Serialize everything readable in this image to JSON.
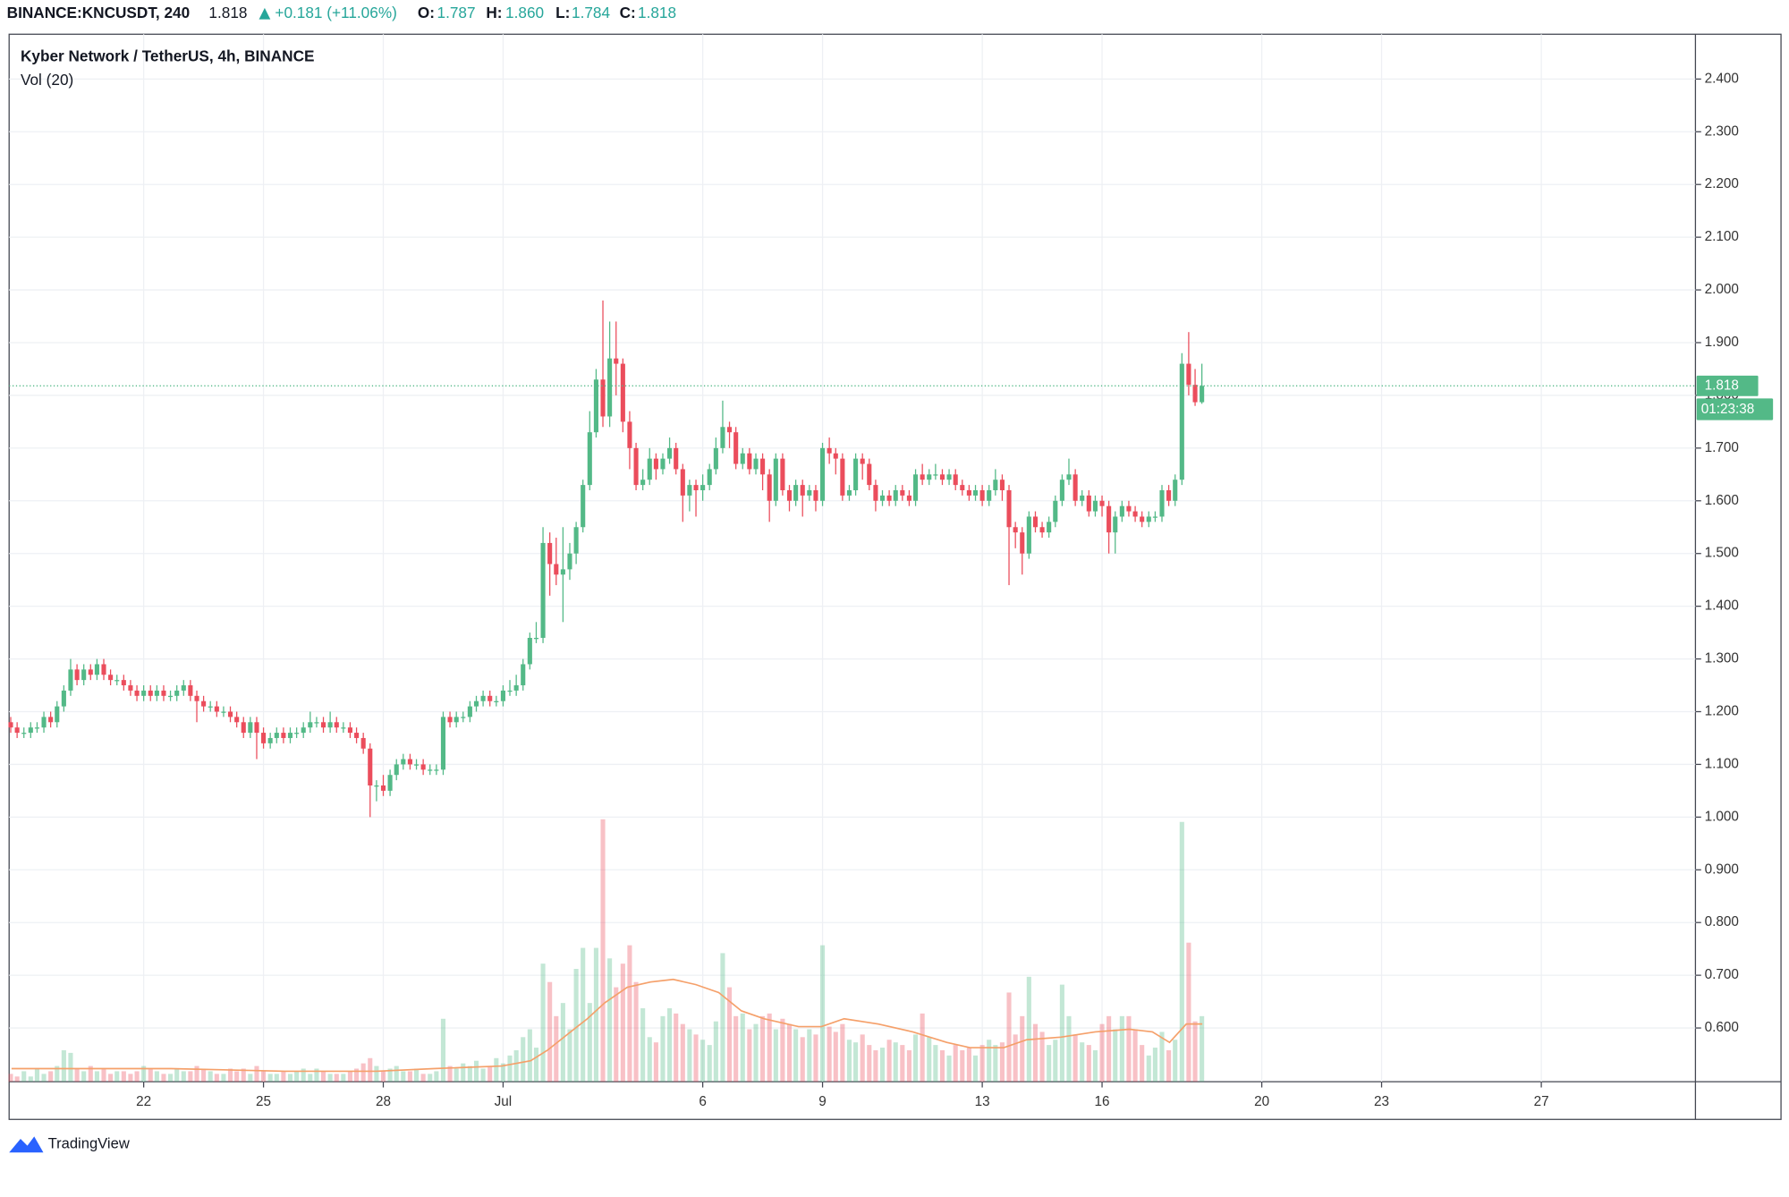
{
  "header": {
    "symbol": "BINANCE:KNCUSDT, 240",
    "last": "1.818",
    "change": "+0.181 (+11.06%)",
    "o_label": "O:",
    "o": "1.787",
    "h_label": "H:",
    "h": "1.860",
    "l_label": "L:",
    "l": "1.784",
    "c_label": "C:",
    "c": "1.818"
  },
  "brand": "TradingView",
  "chart_data": {
    "type": "candlestick",
    "title": "Kyber Network / TetherUS, 4h, BINANCE",
    "volume_label": "Vol (20)",
    "countdown": "01:23:38",
    "up_color": "#53b987",
    "down_color": "#eb4d5c",
    "volume_ma_color": "#f5a06a",
    "grid": true,
    "xlim": [
      18.63,
      60.86
    ],
    "ylim": [
      0.498,
      2.485
    ],
    "xticks": [
      22,
      25,
      28,
      {
        "value": 31,
        "label": "Jul"
      },
      {
        "value": 36,
        "label": "6"
      },
      {
        "value": 39,
        "label": "9"
      },
      {
        "value": 43,
        "label": "13"
      },
      {
        "value": 46,
        "label": "16"
      },
      {
        "value": 50,
        "label": "20"
      },
      {
        "value": 53,
        "label": "23"
      },
      {
        "value": 57,
        "label": "27"
      }
    ],
    "yticks": [
      {
        "value": 0.6,
        "label": "0.600"
      },
      {
        "value": 0.7,
        "label": "0.700"
      },
      {
        "value": 0.8,
        "label": "0.800"
      },
      {
        "value": 0.9,
        "label": "0.900"
      },
      {
        "value": 1.0,
        "label": "1.000"
      },
      {
        "value": 1.1,
        "label": "1.100"
      },
      {
        "value": 1.2,
        "label": "1.200"
      },
      {
        "value": 1.3,
        "label": "1.300"
      },
      {
        "value": 1.4,
        "label": "1.400"
      },
      {
        "value": 1.5,
        "label": "1.500"
      },
      {
        "value": 1.6,
        "label": "1.600"
      },
      {
        "value": 1.7,
        "label": "1.700"
      },
      {
        "value": 1.8,
        "label": "1.800"
      },
      {
        "value": 1.9,
        "label": "1.900"
      },
      {
        "value": 2.0,
        "label": "2.000"
      },
      {
        "value": 2.1,
        "label": "2.100"
      },
      {
        "value": 2.2,
        "label": "2.200"
      },
      {
        "value": 2.3,
        "label": "2.300"
      },
      {
        "value": 2.4,
        "label": "2.400"
      }
    ],
    "x": [
      18.67,
      18.83,
      19,
      19.17,
      19.33,
      19.5,
      19.67,
      19.83,
      20,
      20.17,
      20.33,
      20.5,
      20.67,
      20.83,
      21,
      21.17,
      21.33,
      21.5,
      21.67,
      21.83,
      22,
      22.17,
      22.33,
      22.5,
      22.67,
      22.83,
      23,
      23.17,
      23.33,
      23.5,
      23.67,
      23.83,
      24,
      24.17,
      24.33,
      24.5,
      24.67,
      24.83,
      25,
      25.17,
      25.33,
      25.5,
      25.67,
      25.83,
      26,
      26.17,
      26.33,
      26.5,
      26.67,
      26.83,
      27,
      27.17,
      27.33,
      27.5,
      27.67,
      27.83,
      28,
      28.17,
      28.33,
      28.5,
      28.67,
      28.83,
      29,
      29.17,
      29.33,
      29.5,
      29.67,
      29.83,
      30,
      30.17,
      30.33,
      30.5,
      30.67,
      30.83,
      31,
      31.17,
      31.33,
      31.5,
      31.67,
      31.83,
      32,
      32.17,
      32.33,
      32.5,
      32.67,
      32.83,
      33,
      33.17,
      33.33,
      33.5,
      33.67,
      33.83,
      34,
      34.17,
      34.33,
      34.5,
      34.67,
      34.83,
      35,
      35.17,
      35.33,
      35.5,
      35.67,
      35.83,
      36,
      36.17,
      36.33,
      36.5,
      36.67,
      36.83,
      37,
      37.17,
      37.33,
      37.5,
      37.67,
      37.83,
      38,
      38.17,
      38.33,
      38.5,
      38.67,
      38.83,
      39,
      39.17,
      39.33,
      39.5,
      39.67,
      39.83,
      40,
      40.17,
      40.33,
      40.5,
      40.67,
      40.83,
      41,
      41.17,
      41.33,
      41.5,
      41.67,
      41.83,
      42,
      42.17,
      42.33,
      42.5,
      42.67,
      42.83,
      43,
      43.17,
      43.33,
      43.5,
      43.67,
      43.83,
      44,
      44.17,
      44.33,
      44.5,
      44.67,
      44.83,
      45,
      45.17,
      45.33,
      45.5,
      45.67,
      45.83,
      46,
      46.17,
      46.33,
      46.5,
      46.67,
      46.83,
      47,
      47.17,
      47.33,
      47.5,
      47.67,
      47.83,
      48,
      48.17,
      48.33,
      48.5
    ],
    "open": [
      1.18,
      1.17,
      1.16,
      1.16,
      1.17,
      1.17,
      1.19,
      1.18,
      1.21,
      1.24,
      1.28,
      1.26,
      1.28,
      1.27,
      1.29,
      1.27,
      1.26,
      1.26,
      1.25,
      1.24,
      1.23,
      1.24,
      1.23,
      1.24,
      1.23,
      1.23,
      1.24,
      1.25,
      1.23,
      1.22,
      1.21,
      1.21,
      1.2,
      1.2,
      1.19,
      1.18,
      1.16,
      1.18,
      1.16,
      1.14,
      1.15,
      1.16,
      1.15,
      1.16,
      1.16,
      1.17,
      1.18,
      1.18,
      1.17,
      1.18,
      1.17,
      1.17,
      1.16,
      1.15,
      1.13,
      1.06,
      1.06,
      1.05,
      1.08,
      1.1,
      1.11,
      1.1,
      1.1,
      1.09,
      1.09,
      1.09,
      1.19,
      1.18,
      1.19,
      1.19,
      1.21,
      1.22,
      1.23,
      1.22,
      1.22,
      1.24,
      1.24,
      1.25,
      1.29,
      1.34,
      1.34,
      1.52,
      1.48,
      1.46,
      1.47,
      1.5,
      1.55,
      1.63,
      1.73,
      1.83,
      1.76,
      1.87,
      1.86,
      1.75,
      1.7,
      1.63,
      1.64,
      1.68,
      1.66,
      1.68,
      1.7,
      1.66,
      1.61,
      1.63,
      1.62,
      1.63,
      1.66,
      1.7,
      1.74,
      1.73,
      1.67,
      1.69,
      1.66,
      1.68,
      1.65,
      1.6,
      1.68,
      1.62,
      1.6,
      1.63,
      1.61,
      1.62,
      1.6,
      1.7,
      1.69,
      1.68,
      1.61,
      1.62,
      1.68,
      1.67,
      1.63,
      1.6,
      1.61,
      1.6,
      1.62,
      1.61,
      1.6,
      1.65,
      1.64,
      1.65,
      1.65,
      1.64,
      1.65,
      1.63,
      1.62,
      1.61,
      1.62,
      1.6,
      1.62,
      1.64,
      1.62,
      1.55,
      1.54,
      1.5,
      1.57,
      1.55,
      1.54,
      1.56,
      1.6,
      1.64,
      1.65,
      1.6,
      1.61,
      1.58,
      1.6,
      1.59,
      1.54,
      1.57,
      1.59,
      1.58,
      1.57,
      1.56,
      1.57,
      1.57,
      1.62,
      1.6,
      1.64,
      1.86,
      1.82,
      1.787
    ],
    "high": [
      1.19,
      1.18,
      1.17,
      1.18,
      1.18,
      1.2,
      1.2,
      1.22,
      1.25,
      1.3,
      1.29,
      1.29,
      1.29,
      1.3,
      1.3,
      1.28,
      1.27,
      1.27,
      1.26,
      1.25,
      1.25,
      1.25,
      1.25,
      1.25,
      1.24,
      1.25,
      1.26,
      1.26,
      1.24,
      1.23,
      1.22,
      1.22,
      1.21,
      1.21,
      1.2,
      1.19,
      1.19,
      1.19,
      1.17,
      1.16,
      1.17,
      1.17,
      1.17,
      1.17,
      1.18,
      1.2,
      1.19,
      1.19,
      1.2,
      1.19,
      1.18,
      1.18,
      1.17,
      1.16,
      1.14,
      1.07,
      1.08,
      1.09,
      1.11,
      1.12,
      1.12,
      1.11,
      1.11,
      1.1,
      1.1,
      1.2,
      1.2,
      1.2,
      1.2,
      1.22,
      1.23,
      1.24,
      1.24,
      1.23,
      1.25,
      1.26,
      1.27,
      1.3,
      1.35,
      1.37,
      1.55,
      1.54,
      1.53,
      1.55,
      1.52,
      1.56,
      1.64,
      1.77,
      1.85,
      1.98,
      1.94,
      1.94,
      1.87,
      1.77,
      1.71,
      1.66,
      1.7,
      1.69,
      1.69,
      1.72,
      1.71,
      1.67,
      1.64,
      1.64,
      1.65,
      1.67,
      1.72,
      1.79,
      1.75,
      1.74,
      1.7,
      1.7,
      1.69,
      1.69,
      1.66,
      1.69,
      1.69,
      1.63,
      1.64,
      1.64,
      1.63,
      1.63,
      1.71,
      1.72,
      1.7,
      1.69,
      1.63,
      1.69,
      1.69,
      1.68,
      1.64,
      1.62,
      1.62,
      1.63,
      1.63,
      1.62,
      1.66,
      1.67,
      1.66,
      1.67,
      1.66,
      1.66,
      1.66,
      1.64,
      1.63,
      1.63,
      1.63,
      1.63,
      1.66,
      1.65,
      1.63,
      1.56,
      1.55,
      1.58,
      1.58,
      1.56,
      1.57,
      1.61,
      1.65,
      1.68,
      1.66,
      1.62,
      1.62,
      1.61,
      1.61,
      1.6,
      1.58,
      1.6,
      1.6,
      1.59,
      1.58,
      1.58,
      1.58,
      1.63,
      1.63,
      1.65,
      1.88,
      1.92,
      1.85,
      1.86
    ],
    "low": [
      1.16,
      1.15,
      1.15,
      1.15,
      1.16,
      1.16,
      1.17,
      1.17,
      1.2,
      1.23,
      1.25,
      1.25,
      1.26,
      1.26,
      1.26,
      1.25,
      1.25,
      1.24,
      1.23,
      1.22,
      1.22,
      1.22,
      1.22,
      1.22,
      1.22,
      1.22,
      1.23,
      1.22,
      1.18,
      1.2,
      1.2,
      1.19,
      1.19,
      1.18,
      1.17,
      1.15,
      1.15,
      1.11,
      1.13,
      1.13,
      1.14,
      1.14,
      1.14,
      1.15,
      1.15,
      1.16,
      1.17,
      1.16,
      1.16,
      1.16,
      1.16,
      1.15,
      1.14,
      1.12,
      1.0,
      1.03,
      1.04,
      1.04,
      1.07,
      1.09,
      1.09,
      1.09,
      1.08,
      1.08,
      1.08,
      1.08,
      1.17,
      1.17,
      1.18,
      1.18,
      1.2,
      1.21,
      1.21,
      1.21,
      1.21,
      1.23,
      1.23,
      1.24,
      1.28,
      1.33,
      1.33,
      1.42,
      1.44,
      1.37,
      1.45,
      1.48,
      1.54,
      1.62,
      1.72,
      1.74,
      1.74,
      1.8,
      1.73,
      1.66,
      1.62,
      1.62,
      1.63,
      1.64,
      1.65,
      1.67,
      1.65,
      1.56,
      1.58,
      1.57,
      1.6,
      1.62,
      1.65,
      1.69,
      1.7,
      1.66,
      1.66,
      1.65,
      1.65,
      1.62,
      1.56,
      1.59,
      1.61,
      1.58,
      1.59,
      1.57,
      1.6,
      1.58,
      1.59,
      1.67,
      1.65,
      1.6,
      1.6,
      1.61,
      1.64,
      1.62,
      1.58,
      1.59,
      1.59,
      1.59,
      1.6,
      1.59,
      1.59,
      1.63,
      1.63,
      1.64,
      1.63,
      1.63,
      1.62,
      1.61,
      1.6,
      1.6,
      1.59,
      1.59,
      1.61,
      1.6,
      1.44,
      1.51,
      1.46,
      1.49,
      1.54,
      1.53,
      1.53,
      1.55,
      1.59,
      1.63,
      1.59,
      1.59,
      1.57,
      1.57,
      1.57,
      1.5,
      1.5,
      1.56,
      1.57,
      1.56,
      1.55,
      1.55,
      1.56,
      1.56,
      1.59,
      1.59,
      1.63,
      1.8,
      1.78,
      1.784
    ],
    "close": [
      1.17,
      1.16,
      1.16,
      1.17,
      1.17,
      1.19,
      1.18,
      1.21,
      1.24,
      1.28,
      1.26,
      1.28,
      1.27,
      1.29,
      1.27,
      1.26,
      1.26,
      1.25,
      1.24,
      1.23,
      1.24,
      1.23,
      1.24,
      1.23,
      1.23,
      1.24,
      1.25,
      1.23,
      1.22,
      1.21,
      1.21,
      1.2,
      1.2,
      1.19,
      1.18,
      1.16,
      1.18,
      1.16,
      1.14,
      1.15,
      1.16,
      1.15,
      1.16,
      1.16,
      1.17,
      1.18,
      1.18,
      1.17,
      1.18,
      1.17,
      1.17,
      1.16,
      1.15,
      1.13,
      1.06,
      1.06,
      1.05,
      1.08,
      1.1,
      1.11,
      1.1,
      1.1,
      1.09,
      1.09,
      1.09,
      1.19,
      1.18,
      1.19,
      1.19,
      1.21,
      1.22,
      1.23,
      1.22,
      1.22,
      1.24,
      1.24,
      1.25,
      1.29,
      1.34,
      1.34,
      1.52,
      1.48,
      1.46,
      1.47,
      1.5,
      1.55,
      1.63,
      1.73,
      1.83,
      1.76,
      1.87,
      1.86,
      1.75,
      1.7,
      1.63,
      1.64,
      1.68,
      1.66,
      1.68,
      1.7,
      1.66,
      1.61,
      1.63,
      1.62,
      1.63,
      1.66,
      1.7,
      1.74,
      1.73,
      1.67,
      1.69,
      1.66,
      1.68,
      1.65,
      1.6,
      1.68,
      1.62,
      1.6,
      1.63,
      1.61,
      1.62,
      1.6,
      1.7,
      1.69,
      1.68,
      1.61,
      1.62,
      1.68,
      1.67,
      1.63,
      1.6,
      1.61,
      1.6,
      1.62,
      1.61,
      1.6,
      1.65,
      1.64,
      1.65,
      1.65,
      1.64,
      1.65,
      1.63,
      1.62,
      1.61,
      1.62,
      1.6,
      1.62,
      1.64,
      1.62,
      1.55,
      1.54,
      1.5,
      1.57,
      1.55,
      1.54,
      1.56,
      1.6,
      1.64,
      1.65,
      1.6,
      1.61,
      1.58,
      1.6,
      1.59,
      1.54,
      1.57,
      1.59,
      1.58,
      1.57,
      1.56,
      1.57,
      1.57,
      1.62,
      1.6,
      1.64,
      1.86,
      1.82,
      1.787,
      1.818
    ],
    "volume": [
      3,
      2,
      4,
      2,
      5,
      3,
      4,
      6,
      12,
      11,
      5,
      4,
      6,
      4,
      5,
      3,
      4,
      4,
      3,
      4,
      6,
      5,
      4,
      3,
      3,
      5,
      4,
      4,
      6,
      5,
      4,
      3,
      3,
      5,
      4,
      5,
      3,
      6,
      4,
      3,
      3,
      4,
      3,
      4,
      5,
      3,
      5,
      4,
      3,
      3,
      3,
      4,
      5,
      7,
      9,
      6,
      4,
      5,
      6,
      4,
      4,
      5,
      3,
      3,
      4,
      24,
      6,
      5,
      7,
      6,
      8,
      5,
      6,
      9,
      7,
      10,
      12,
      17,
      20,
      13,
      45,
      38,
      25,
      30,
      20,
      43,
      51,
      30,
      51,
      100,
      47,
      36,
      45,
      52,
      38,
      28,
      17,
      15,
      25,
      28,
      26,
      22,
      20,
      18,
      16,
      14,
      23,
      49,
      36,
      25,
      26,
      20,
      22,
      25,
      26,
      20,
      24,
      22,
      20,
      17,
      20,
      18,
      52,
      21,
      19,
      22,
      16,
      15,
      18,
      14,
      12,
      13,
      16,
      15,
      14,
      12,
      18,
      26,
      17,
      14,
      12,
      10,
      14,
      12,
      13,
      10,
      14,
      16,
      14,
      15,
      34,
      18,
      25,
      40,
      22,
      19,
      14,
      16,
      37,
      25,
      18,
      15,
      14,
      12,
      22,
      25,
      20,
      25,
      25,
      20,
      14,
      10,
      13,
      19,
      12,
      16,
      99,
      53,
      23,
      25
    ],
    "volume_ma": {
      "x": [
        18.69,
        20.11,
        22.69,
        25.54,
        27.83,
        29.26,
        30.97,
        31.69,
        32.11,
        32.69,
        33.11,
        33.54,
        34.11,
        34.69,
        35.26,
        35.83,
        36.4,
        36.97,
        37.54,
        38.4,
        38.97,
        39.54,
        40.4,
        41.26,
        42.11,
        42.69,
        43.54,
        44.11,
        44.97,
        45.83,
        46.69,
        47.26,
        47.69,
        48.11,
        48.51
      ],
      "values": [
        5,
        5,
        5,
        4,
        4,
        5,
        6,
        8,
        12,
        19,
        24,
        30,
        36,
        38,
        39,
        37,
        34,
        27,
        24,
        21,
        21,
        24,
        22,
        19,
        15,
        13,
        13,
        16,
        17,
        19,
        20,
        19,
        15,
        22,
        22
      ]
    }
  }
}
